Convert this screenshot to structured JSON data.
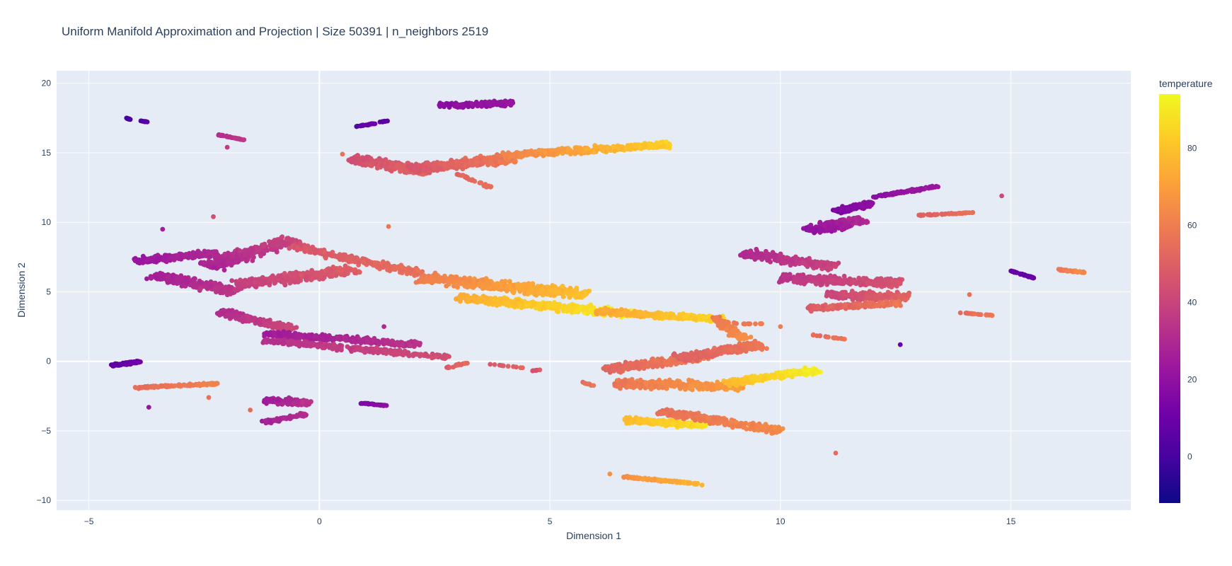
{
  "chart_data": {
    "type": "scatter",
    "title": "Uniform Manifold Approximation and Projection | Size 50391 | n_neighbors 2519",
    "xlabel": "Dimension 1",
    "ylabel": "Dimension 2",
    "xlim": [
      -5.7,
      17.6
    ],
    "ylim": [
      -10.7,
      20.9
    ],
    "xticks": [
      -5,
      0,
      5,
      10,
      15
    ],
    "yticks": [
      -10,
      -5,
      0,
      5,
      10,
      15,
      20
    ],
    "xtick_labels": [
      "−5",
      "0",
      "5",
      "10",
      "15"
    ],
    "ytick_labels": [
      "−10",
      "−5",
      "0",
      "5",
      "10",
      "15",
      "20"
    ],
    "grid": true,
    "colorbar": {
      "title": "temperature",
      "range": [
        -12,
        94
      ],
      "ticks": [
        0,
        20,
        40,
        60,
        80
      ],
      "tick_labels": [
        "0",
        "20",
        "40",
        "60",
        "80"
      ],
      "colorscale": [
        "#0d0887",
        "#46039f",
        "#7201a8",
        "#9c179e",
        "#bd3786",
        "#d8576b",
        "#ed7953",
        "#fb9f3a",
        "#fdca26",
        "#f0f921"
      ]
    },
    "clusters": [
      {
        "x1": 2.6,
        "y1": 18.4,
        "x2": 4.2,
        "y2": 18.6,
        "w": 0.5,
        "t0": 18,
        "t1": 22,
        "n": 180
      },
      {
        "x1": 0.7,
        "y1": 14.6,
        "x2": 2.4,
        "y2": 13.6,
        "w": 0.8,
        "t0": 44,
        "t1": 52,
        "n": 320
      },
      {
        "x1": 2.0,
        "y1": 13.8,
        "x2": 4.2,
        "y2": 14.6,
        "w": 0.9,
        "t0": 46,
        "t1": 60,
        "n": 420
      },
      {
        "x1": 4.0,
        "y1": 14.8,
        "x2": 7.6,
        "y2": 15.6,
        "w": 0.6,
        "t0": 62,
        "t1": 84,
        "n": 420
      },
      {
        "x1": 3.0,
        "y1": 13.5,
        "x2": 3.7,
        "y2": 12.5,
        "w": 0.15,
        "t0": 52,
        "t1": 56,
        "n": 30
      },
      {
        "x1": 0.8,
        "y1": 16.9,
        "x2": 1.2,
        "y2": 17.1,
        "w": 0.1,
        "t0": 4,
        "t1": 10,
        "n": 30
      },
      {
        "x1": 1.3,
        "y1": 17.2,
        "x2": 1.5,
        "y2": 17.3,
        "w": 0.05,
        "t0": 6,
        "t1": 8,
        "n": 12
      },
      {
        "x1": -4.2,
        "y1": 17.5,
        "x2": -4.1,
        "y2": 17.4,
        "w": 0.05,
        "t0": 0,
        "t1": 2,
        "n": 10
      },
      {
        "x1": -3.9,
        "y1": 17.3,
        "x2": -3.7,
        "y2": 17.2,
        "w": 0.05,
        "t0": 2,
        "t1": 4,
        "n": 10
      },
      {
        "x1": -2.2,
        "y1": 16.3,
        "x2": -1.6,
        "y2": 15.9,
        "w": 0.08,
        "t0": 32,
        "t1": 36,
        "n": 40
      },
      {
        "x1": -4.0,
        "y1": 7.2,
        "x2": -2.2,
        "y2": 7.8,
        "w": 0.6,
        "t0": 22,
        "t1": 30,
        "n": 260
      },
      {
        "x1": -3.6,
        "y1": 6.2,
        "x2": -1.8,
        "y2": 5.0,
        "w": 0.8,
        "t0": 26,
        "t1": 36,
        "n": 280
      },
      {
        "x1": -2.4,
        "y1": 6.8,
        "x2": -0.6,
        "y2": 8.8,
        "w": 0.9,
        "t0": 28,
        "t1": 40,
        "n": 320
      },
      {
        "x1": -1.8,
        "y1": 5.5,
        "x2": 0.8,
        "y2": 6.6,
        "w": 0.9,
        "t0": 38,
        "t1": 50,
        "n": 380
      },
      {
        "x1": -0.6,
        "y1": 8.3,
        "x2": 2.2,
        "y2": 6.3,
        "w": 0.6,
        "t0": 46,
        "t1": 56,
        "n": 260
      },
      {
        "x1": -2.2,
        "y1": 3.6,
        "x2": -0.6,
        "y2": 2.3,
        "w": 0.6,
        "t0": 30,
        "t1": 42,
        "n": 220
      },
      {
        "x1": -1.2,
        "y1": 2.0,
        "x2": 2.2,
        "y2": 1.2,
        "w": 0.6,
        "t0": 24,
        "t1": 34,
        "n": 360
      },
      {
        "x1": -1.2,
        "y1": 1.5,
        "x2": 2.8,
        "y2": 0.3,
        "w": 0.5,
        "t0": 32,
        "t1": 44,
        "n": 320
      },
      {
        "x1": 2.2,
        "y1": 6.0,
        "x2": 5.8,
        "y2": 4.8,
        "w": 1.0,
        "t0": 60,
        "t1": 80,
        "n": 520
      },
      {
        "x1": 3.0,
        "y1": 4.6,
        "x2": 6.8,
        "y2": 3.4,
        "w": 0.8,
        "t0": 74,
        "t1": 92,
        "n": 500
      },
      {
        "x1": 6.0,
        "y1": 3.6,
        "x2": 8.8,
        "y2": 3.0,
        "w": 0.6,
        "t0": 72,
        "t1": 86,
        "n": 320
      },
      {
        "x1": 8.6,
        "y1": 3.2,
        "x2": 9.2,
        "y2": 1.6,
        "w": 0.5,
        "t0": 58,
        "t1": 66,
        "n": 120
      },
      {
        "x1": 6.2,
        "y1": -0.6,
        "x2": 8.4,
        "y2": 0.4,
        "w": 0.8,
        "t0": 52,
        "t1": 60,
        "n": 300
      },
      {
        "x1": 7.8,
        "y1": 0.2,
        "x2": 9.6,
        "y2": 1.2,
        "w": 0.8,
        "t0": 50,
        "t1": 58,
        "n": 260
      },
      {
        "x1": 6.4,
        "y1": -1.6,
        "x2": 9.2,
        "y2": -1.8,
        "w": 0.9,
        "t0": 58,
        "t1": 70,
        "n": 320
      },
      {
        "x1": 8.8,
        "y1": -1.6,
        "x2": 10.8,
        "y2": -0.6,
        "w": 0.6,
        "t0": 78,
        "t1": 92,
        "n": 260
      },
      {
        "x1": 6.6,
        "y1": -4.2,
        "x2": 8.4,
        "y2": -4.6,
        "w": 0.6,
        "t0": 78,
        "t1": 88,
        "n": 260
      },
      {
        "x1": 7.4,
        "y1": -3.6,
        "x2": 10.0,
        "y2": -5.0,
        "w": 0.7,
        "t0": 56,
        "t1": 64,
        "n": 280
      },
      {
        "x1": 6.6,
        "y1": -8.3,
        "x2": 8.2,
        "y2": -8.8,
        "w": 0.2,
        "t0": 66,
        "t1": 76,
        "n": 120
      },
      {
        "x1": 10.6,
        "y1": 9.4,
        "x2": 11.8,
        "y2": 10.2,
        "w": 0.8,
        "t0": 20,
        "t1": 30,
        "n": 260
      },
      {
        "x1": 11.2,
        "y1": 10.8,
        "x2": 12.0,
        "y2": 11.4,
        "w": 0.5,
        "t0": 14,
        "t1": 20,
        "n": 160
      },
      {
        "x1": 12.0,
        "y1": 11.8,
        "x2": 13.4,
        "y2": 12.6,
        "w": 0.2,
        "t0": 18,
        "t1": 24,
        "n": 120
      },
      {
        "x1": 9.2,
        "y1": 7.8,
        "x2": 11.2,
        "y2": 6.8,
        "w": 0.8,
        "t0": 30,
        "t1": 40,
        "n": 280
      },
      {
        "x1": 10.0,
        "y1": 6.0,
        "x2": 12.6,
        "y2": 5.6,
        "w": 0.9,
        "t0": 34,
        "t1": 46,
        "n": 340
      },
      {
        "x1": 11.0,
        "y1": 4.8,
        "x2": 12.8,
        "y2": 4.6,
        "w": 0.8,
        "t0": 40,
        "t1": 52,
        "n": 280
      },
      {
        "x1": 10.6,
        "y1": 3.8,
        "x2": 12.6,
        "y2": 4.2,
        "w": 0.5,
        "t0": 48,
        "t1": 58,
        "n": 200
      },
      {
        "x1": 13.0,
        "y1": 10.5,
        "x2": 14.2,
        "y2": 10.7,
        "w": 0.1,
        "t0": 50,
        "t1": 56,
        "n": 50
      },
      {
        "x1": 15.0,
        "y1": 6.5,
        "x2": 15.5,
        "y2": 6.0,
        "w": 0.08,
        "t0": 6,
        "t1": 10,
        "n": 40
      },
      {
        "x1": 16.0,
        "y1": 6.6,
        "x2": 16.6,
        "y2": 6.4,
        "w": 0.12,
        "t0": 58,
        "t1": 64,
        "n": 40
      },
      {
        "x1": 13.9,
        "y1": 3.5,
        "x2": 14.6,
        "y2": 3.3,
        "w": 0.06,
        "t0": 54,
        "t1": 58,
        "n": 30
      },
      {
        "x1": 10.7,
        "y1": 1.9,
        "x2": 11.4,
        "y2": 1.6,
        "w": 0.06,
        "t0": 54,
        "t1": 58,
        "n": 20
      },
      {
        "x1": 9.0,
        "y1": 2.7,
        "x2": 9.6,
        "y2": 2.7,
        "w": 0.05,
        "t0": 56,
        "t1": 60,
        "n": 15
      },
      {
        "x1": -4.5,
        "y1": -0.3,
        "x2": -3.9,
        "y2": 0.0,
        "w": 0.25,
        "t0": 6,
        "t1": 12,
        "n": 80
      },
      {
        "x1": -4.0,
        "y1": -1.9,
        "x2": -2.2,
        "y2": -1.6,
        "w": 0.25,
        "t0": 54,
        "t1": 62,
        "n": 120
      },
      {
        "x1": -1.2,
        "y1": -2.8,
        "x2": -0.2,
        "y2": -3.0,
        "w": 0.6,
        "t0": 24,
        "t1": 34,
        "n": 140
      },
      {
        "x1": -1.2,
        "y1": -4.4,
        "x2": -0.3,
        "y2": -3.8,
        "w": 0.3,
        "t0": 26,
        "t1": 32,
        "n": 80
      },
      {
        "x1": 0.9,
        "y1": -3.0,
        "x2": 1.5,
        "y2": -3.2,
        "w": 0.08,
        "t0": 14,
        "t1": 20,
        "n": 40
      },
      {
        "x1": 2.7,
        "y1": -0.5,
        "x2": 3.2,
        "y2": -0.1,
        "w": 0.15,
        "t0": 48,
        "t1": 54,
        "n": 20
      },
      {
        "x1": 3.7,
        "y1": -0.2,
        "x2": 4.5,
        "y2": -0.5,
        "w": 0.05,
        "t0": 48,
        "t1": 52,
        "n": 12
      },
      {
        "x1": 4.6,
        "y1": -0.7,
        "x2": 4.8,
        "y2": -0.6,
        "w": 0.05,
        "t0": 44,
        "t1": 48,
        "n": 8
      },
      {
        "x1": 5.7,
        "y1": -1.5,
        "x2": 6.0,
        "y2": -1.8,
        "w": 0.1,
        "t0": 54,
        "t1": 58,
        "n": 10
      }
    ],
    "outliers": [
      {
        "x": -3.4,
        "y": 9.5,
        "t": 26
      },
      {
        "x": -2.3,
        "y": 10.4,
        "t": 44
      },
      {
        "x": -2.0,
        "y": 15.4,
        "t": 36
      },
      {
        "x": 1.5,
        "y": 9.7,
        "t": 58
      },
      {
        "x": 1.4,
        "y": 2.5,
        "t": 30
      },
      {
        "x": -3.7,
        "y": -3.3,
        "t": 22
      },
      {
        "x": -2.4,
        "y": -2.6,
        "t": 56
      },
      {
        "x": -1.5,
        "y": -3.5,
        "t": 54
      },
      {
        "x": 14.8,
        "y": 11.9,
        "t": 42
      },
      {
        "x": 12.6,
        "y": 1.2,
        "t": 8
      },
      {
        "x": 14.1,
        "y": 4.8,
        "t": 56
      },
      {
        "x": 11.2,
        "y": -6.6,
        "t": 54
      },
      {
        "x": 6.3,
        "y": -8.1,
        "t": 66
      },
      {
        "x": 8.3,
        "y": -8.9,
        "t": 76
      },
      {
        "x": 10.0,
        "y": 2.5,
        "t": 60
      },
      {
        "x": 0.5,
        "y": 14.9,
        "t": 56
      }
    ]
  }
}
